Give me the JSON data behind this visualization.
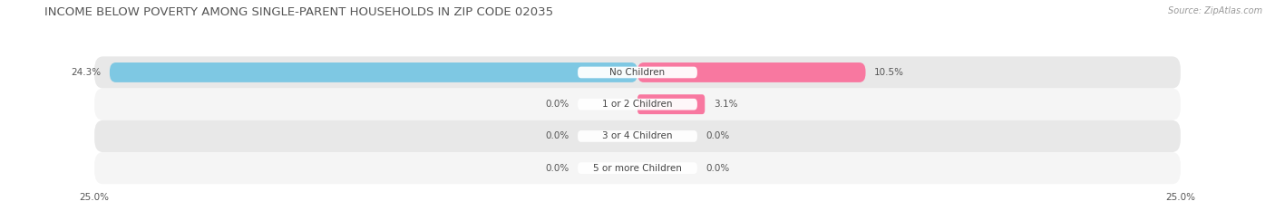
{
  "title": "INCOME BELOW POVERTY AMONG SINGLE-PARENT HOUSEHOLDS IN ZIP CODE 02035",
  "source": "Source: ZipAtlas.com",
  "categories": [
    "No Children",
    "1 or 2 Children",
    "3 or 4 Children",
    "5 or more Children"
  ],
  "single_father": [
    24.3,
    0.0,
    0.0,
    0.0
  ],
  "single_mother": [
    10.5,
    3.1,
    0.0,
    0.0
  ],
  "father_color": "#7ec8e3",
  "mother_color": "#f878a0",
  "max_val": 25.0,
  "bar_height": 0.62,
  "row_bg_even": "#e8e8e8",
  "row_bg_odd": "#f5f5f5",
  "title_fontsize": 9.5,
  "label_fontsize": 7.5,
  "cat_fontsize": 7.5,
  "tick_fontsize": 7.5,
  "legend_fontsize": 8,
  "source_fontsize": 7,
  "title_color": "#555555",
  "label_color": "#555555",
  "source_color": "#999999"
}
